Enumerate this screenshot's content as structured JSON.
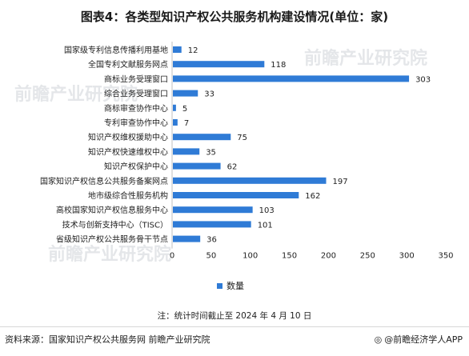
{
  "title": "图表4：各类型知识产权公共服务机构建设情况(单位：家)",
  "legend_label": "数量",
  "note": "注：统计时间截止至 2024 年 4 月 10 日",
  "source": "资料来源：国家知识产权公共服务网 前瞻产业研究院",
  "brand": "@前瞻经济学人APP",
  "watermark": "前瞻产业研究院",
  "colors": {
    "bar": "#2f7bd6"
  },
  "chart_data": {
    "type": "bar",
    "orientation": "horizontal",
    "categories": [
      "国家级专利信息传播利用基地",
      "全国专利文献服务网点",
      "商标业务受理窗口",
      "综合业务受理窗口",
      "商标审查协作中心",
      "专利审查协作中心",
      "知识产权维权援助中心",
      "知识产权快速维权中心",
      "知识产权保护中心",
      "国家知识产权信息公共服务备案网点",
      "地市级综合性服务机构",
      "高校国家知识产权信息服务中心",
      "技术与创新支持中心（TISC）",
      "省级知识产权公共服务骨干节点"
    ],
    "series": [
      {
        "name": "数量",
        "values": [
          12,
          118,
          303,
          33,
          5,
          7,
          75,
          35,
          62,
          197,
          162,
          103,
          101,
          36
        ]
      }
    ],
    "xlim": [
      0,
      350
    ],
    "xticks": [
      0,
      50,
      100,
      150,
      200,
      250,
      300,
      350
    ],
    "grid": false,
    "legend_position": "bottom"
  }
}
